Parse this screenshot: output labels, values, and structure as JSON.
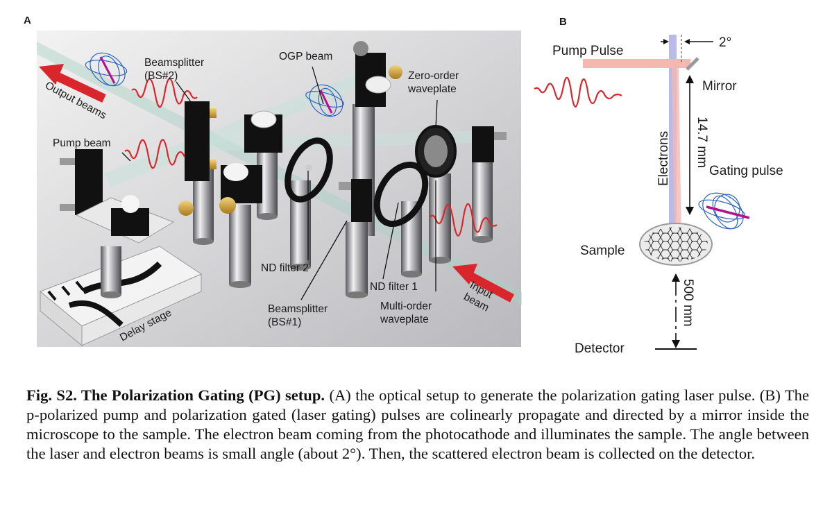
{
  "panelA": {
    "letter": "A",
    "labels": {
      "output_beams": "Output beams",
      "beamsplitter2": "Beamsplitter (BS#2)",
      "ogp_beam": "OGP beam",
      "zero_order": "Zero-order waveplate",
      "pump_beam": "Pump beam",
      "nd_filter_2": "ND filter 2",
      "nd_filter_1": "ND filter 1",
      "beamsplitter1": "Beamsplitter (BS#1)",
      "multi_order": "Multi-order waveplate",
      "input_beam": "Input beam",
      "delay_stage": "Delay stage"
    }
  },
  "panelB": {
    "letter": "B",
    "labels": {
      "pump_pulse": "Pump Pulse",
      "angle": "2°",
      "mirror": "Mirror",
      "distance1": "14.7 mm",
      "electrons": "Electrons",
      "gating_pulse": "Gating pulse",
      "sample": "Sample",
      "distance2": "500 mm",
      "detector": "Detector"
    }
  },
  "caption": {
    "title": "Fig. S2. The Polarization Gating (PG) setup.",
    "text": " (A) the optical setup to generate the polarization gating laser pulse. (B) The p-polarized pump and polarization gated (laser gating) pulses are colinearly propagate and directed by a mirror inside the microscope to the sample. The electron beam coming from the photocathode and illuminates the sample. The angle between the laser and electron beams is small angle (about 2°).  Then, the scattered electron beam is collected on the detector."
  },
  "colors": {
    "red": "#d8262c",
    "pink": "#f4b8b0",
    "lavender": "#b3b3e6",
    "blue": "#2a63c2",
    "magenta": "#b4118c"
  }
}
